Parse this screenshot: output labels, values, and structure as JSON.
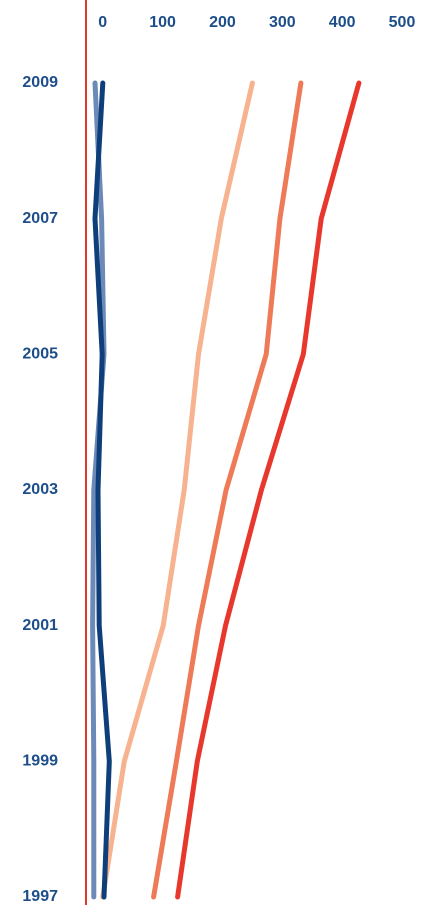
{
  "chart_data": {
    "type": "line",
    "orientation": "vertical-time",
    "x_ticks": [
      "0",
      "100",
      "200",
      "300",
      "400",
      "500"
    ],
    "x_tick_values": [
      0,
      100,
      200,
      300,
      400,
      500
    ],
    "xlim": [
      -28,
      510
    ],
    "y_ticks": [
      "2009",
      "2007",
      "2005",
      "2003",
      "2001",
      "1999",
      "1997"
    ],
    "y_tick_values": [
      2009,
      2007,
      2005,
      2003,
      2001,
      1999,
      1997
    ],
    "ylim": [
      1997,
      2009
    ],
    "reference_line": {
      "x": -28,
      "color": "#e0382b"
    },
    "grid": false,
    "legend": "none",
    "series": [
      {
        "color": "#f7b28f",
        "points": [
          {
            "year": 1997,
            "value": 0
          },
          {
            "year": 1999,
            "value": 36
          },
          {
            "year": 2001,
            "value": 101
          },
          {
            "year": 2003,
            "value": 136
          },
          {
            "year": 2005,
            "value": 160
          },
          {
            "year": 2007,
            "value": 198
          },
          {
            "year": 2009,
            "value": 250
          }
        ]
      },
      {
        "color": "#ee7a57",
        "points": [
          {
            "year": 1997,
            "value": 85
          },
          {
            "year": 1999,
            "value": 123
          },
          {
            "year": 2001,
            "value": 160
          },
          {
            "year": 2003,
            "value": 206
          },
          {
            "year": 2005,
            "value": 273
          },
          {
            "year": 2007,
            "value": 296
          },
          {
            "year": 2009,
            "value": 331
          }
        ]
      },
      {
        "color": "#e8382d",
        "points": [
          {
            "year": 1997,
            "value": 125
          },
          {
            "year": 1999,
            "value": 158
          },
          {
            "year": 2001,
            "value": 205
          },
          {
            "year": 2003,
            "value": 265
          },
          {
            "year": 2005,
            "value": 335
          },
          {
            "year": 2007,
            "value": 365
          },
          {
            "year": 2009,
            "value": 428
          }
        ]
      },
      {
        "color": "#6c8ab7",
        "points": [
          {
            "year": 1997,
            "value": -15
          },
          {
            "year": 1999,
            "value": -15
          },
          {
            "year": 2001,
            "value": -17
          },
          {
            "year": 2003,
            "value": -15
          },
          {
            "year": 2005,
            "value": 2
          },
          {
            "year": 2007,
            "value": -2
          },
          {
            "year": 2009,
            "value": -13
          }
        ]
      },
      {
        "color": "#0e3f7a",
        "points": [
          {
            "year": 1997,
            "value": 2
          },
          {
            "year": 1999,
            "value": 11
          },
          {
            "year": 2001,
            "value": -6
          },
          {
            "year": 2003,
            "value": -8
          },
          {
            "year": 2005,
            "value": -1
          },
          {
            "year": 2007,
            "value": -13
          },
          {
            "year": 2009,
            "value": 0
          }
        ]
      }
    ]
  }
}
